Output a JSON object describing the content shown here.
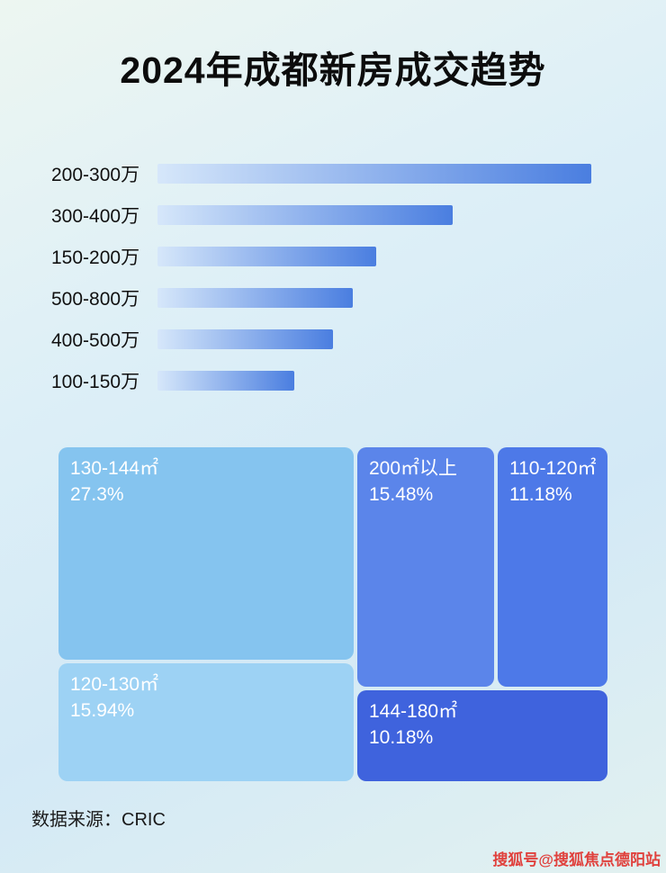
{
  "page": {
    "title": "2024年成都新房成交趋势",
    "source": "数据来源：CRIC",
    "watermark": "搜狐号@搜狐焦点德阳站"
  },
  "chart_data": [
    {
      "type": "bar",
      "orientation": "horizontal",
      "title": "2024年成都新房成交趋势",
      "categories": [
        "200-300万",
        "300-400万",
        "150-200万",
        "500-800万",
        "400-500万",
        "100-150万"
      ],
      "values": [
        100,
        68,
        50.5,
        45,
        40.5,
        31.5
      ],
      "value_note": "relative bar length, percent of longest bar (no numeric labels shown in image)",
      "bar_gradient": [
        "#d6e7fa",
        "#4a7ee0"
      ],
      "xlabel": "",
      "ylabel": "",
      "grid": false,
      "legend": false
    },
    {
      "type": "treemap",
      "items": [
        {
          "label": "130-144㎡",
          "value": "27.3%",
          "color": "#85c4ef"
        },
        {
          "label": "200㎡以上",
          "value": "15.48%",
          "color": "#5b85ea"
        },
        {
          "label": "110-120㎡",
          "value": "11.18%",
          "color": "#4d79e8"
        },
        {
          "label": "120-130㎡",
          "value": "15.94%",
          "color": "#9dd2f4"
        },
        {
          "label": "144-180㎡",
          "value": "10.18%",
          "color": "#3f63dd"
        }
      ],
      "legend": false
    }
  ]
}
